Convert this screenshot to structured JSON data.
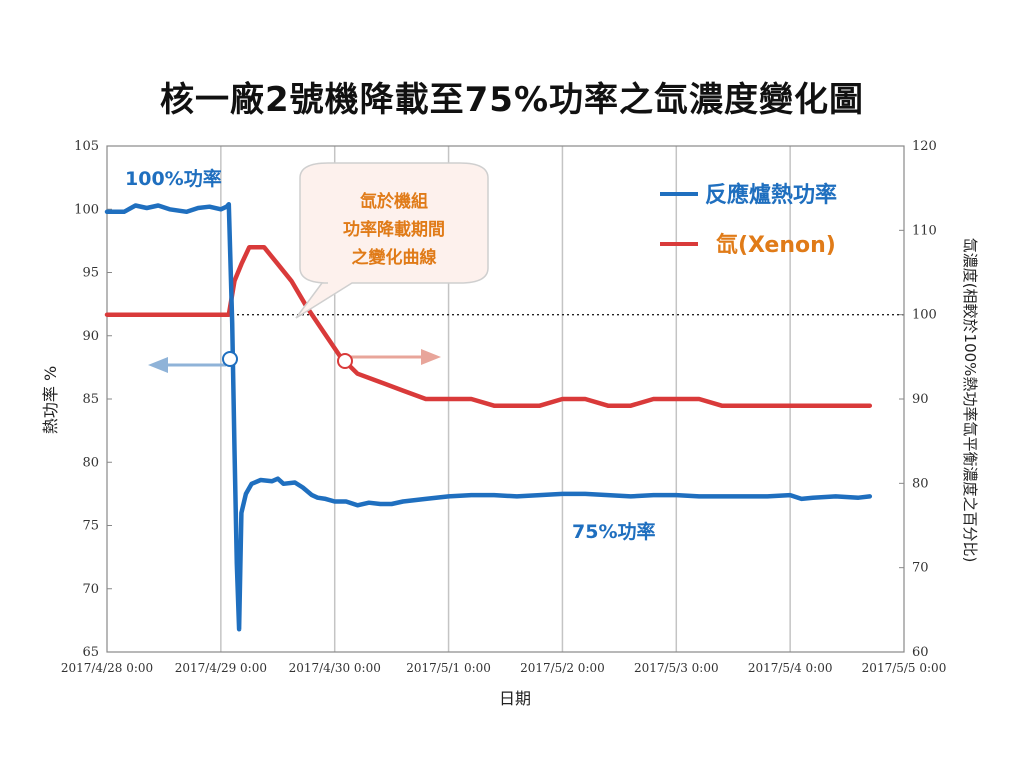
{
  "chart_data": {
    "type": "line",
    "title": "核一廠2號機降載至75%功率之氙濃度變化圖",
    "xlabel": "日期",
    "ylabel_left": "熱功率 %",
    "ylabel_right": "氙濃度(相較於100%熱功率氙平衡濃度之百分比)",
    "x_ticks": [
      "2017/4/28 0:00",
      "2017/4/29 0:00",
      "2017/4/30 0:00",
      "2017/5/1 0:00",
      "2017/5/2 0:00",
      "2017/5/3 0:00",
      "2017/5/4 0:00",
      "2017/5/5 0:00"
    ],
    "xlim_days": [
      0,
      7
    ],
    "ylim_left": [
      65,
      105
    ],
    "yticks_left": [
      65,
      70,
      75,
      80,
      85,
      90,
      95,
      100,
      105
    ],
    "ylim_right": [
      60,
      120
    ],
    "yticks_right": [
      60,
      70,
      80,
      90,
      100,
      110,
      120
    ],
    "reference_line_right": 100,
    "grid": "vertical",
    "legend_position": "top-right",
    "annotations": {
      "power_100": "100%功率",
      "power_75": "75%功率",
      "callout": [
        "氙於機組",
        "功率降載期間",
        "之變化曲線"
      ]
    },
    "series": [
      {
        "name": "反應爐熱功率",
        "axis": "left",
        "color": "#1f6fbf",
        "points": [
          [
            0,
            99.8
          ],
          [
            0.15,
            99.8
          ],
          [
            0.25,
            100.3
          ],
          [
            0.35,
            100.1
          ],
          [
            0.45,
            100.3
          ],
          [
            0.55,
            100
          ],
          [
            0.7,
            99.8
          ],
          [
            0.8,
            100.1
          ],
          [
            0.9,
            100.2
          ],
          [
            1.0,
            100
          ],
          [
            1.05,
            100.2
          ],
          [
            1.07,
            100.4
          ],
          [
            1.1,
            91
          ],
          [
            1.12,
            81
          ],
          [
            1.14,
            72
          ],
          [
            1.16,
            66.8
          ],
          [
            1.18,
            76
          ],
          [
            1.22,
            77.5
          ],
          [
            1.27,
            78.3
          ],
          [
            1.35,
            78.6
          ],
          [
            1.45,
            78.5
          ],
          [
            1.5,
            78.7
          ],
          [
            1.55,
            78.3
          ],
          [
            1.65,
            78.4
          ],
          [
            1.72,
            78
          ],
          [
            1.8,
            77.4
          ],
          [
            1.85,
            77.2
          ],
          [
            1.92,
            77.1
          ],
          [
            2.0,
            76.9
          ],
          [
            2.1,
            76.9
          ],
          [
            2.2,
            76.6
          ],
          [
            2.3,
            76.8
          ],
          [
            2.4,
            76.7
          ],
          [
            2.5,
            76.7
          ],
          [
            2.6,
            76.9
          ],
          [
            2.8,
            77.1
          ],
          [
            3.0,
            77.3
          ],
          [
            3.2,
            77.4
          ],
          [
            3.4,
            77.4
          ],
          [
            3.6,
            77.3
          ],
          [
            3.8,
            77.4
          ],
          [
            4.0,
            77.5
          ],
          [
            4.2,
            77.5
          ],
          [
            4.4,
            77.4
          ],
          [
            4.6,
            77.3
          ],
          [
            4.8,
            77.4
          ],
          [
            5.0,
            77.4
          ],
          [
            5.2,
            77.3
          ],
          [
            5.4,
            77.3
          ],
          [
            5.6,
            77.3
          ],
          [
            5.8,
            77.3
          ],
          [
            6.0,
            77.4
          ],
          [
            6.1,
            77.1
          ],
          [
            6.2,
            77.2
          ],
          [
            6.4,
            77.3
          ],
          [
            6.6,
            77.2
          ],
          [
            6.7,
            77.3
          ]
        ]
      },
      {
        "name": "氙(Xenon)",
        "axis": "right",
        "color": "#d93a3a",
        "points": [
          [
            0,
            100
          ],
          [
            1.07,
            100
          ],
          [
            1.12,
            104
          ],
          [
            1.18,
            106
          ],
          [
            1.25,
            108
          ],
          [
            1.38,
            108
          ],
          [
            1.5,
            106
          ],
          [
            1.62,
            104
          ],
          [
            1.75,
            101
          ],
          [
            1.9,
            98
          ],
          [
            2.05,
            95
          ],
          [
            2.2,
            93
          ],
          [
            2.4,
            92
          ],
          [
            2.6,
            91
          ],
          [
            2.8,
            90
          ],
          [
            3.0,
            90
          ],
          [
            3.2,
            90
          ],
          [
            3.4,
            89.2
          ],
          [
            3.6,
            89.2
          ],
          [
            3.8,
            89.2
          ],
          [
            4.0,
            90
          ],
          [
            4.2,
            90
          ],
          [
            4.4,
            89.2
          ],
          [
            4.6,
            89.2
          ],
          [
            4.8,
            90
          ],
          [
            5.0,
            90
          ],
          [
            5.2,
            90
          ],
          [
            5.4,
            89.2
          ],
          [
            5.6,
            89.2
          ],
          [
            5.8,
            89.2
          ],
          [
            6.0,
            89.2
          ],
          [
            6.2,
            89.2
          ],
          [
            6.4,
            89.2
          ],
          [
            6.6,
            89.2
          ],
          [
            6.7,
            89.2
          ]
        ]
      }
    ]
  }
}
